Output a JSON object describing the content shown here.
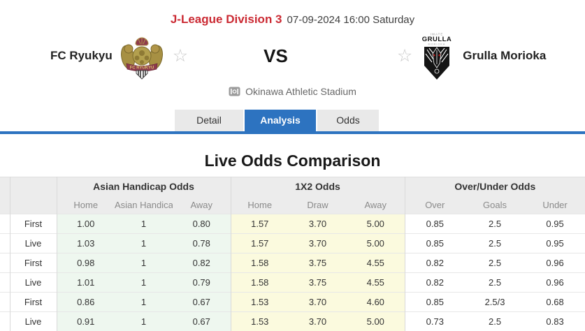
{
  "header": {
    "league": "J-League Division 3",
    "datetime": "07-09-2024 16:00 Saturday"
  },
  "match": {
    "home_team": "FC Ryukyu",
    "away_team": "Grulla Morioka",
    "vs_label": "VS",
    "venue": "Okinawa Athletic Stadium",
    "home_logo_icon": "fc-ryukyu-crest-icon",
    "away_logo_icon": "grulla-morioka-crest-icon",
    "favorite_icon": "star-outline-icon",
    "venue_icon": "stadium-icon",
    "away_logo_text_top": "IWATE",
    "away_logo_text_main": "GRULLA",
    "away_logo_text_sub": "MORIOKA"
  },
  "tabs": [
    {
      "label": "Detail",
      "active": false
    },
    {
      "label": "Analysis",
      "active": true
    },
    {
      "label": "Odds",
      "active": false
    }
  ],
  "section_title": "Live Odds Comparison",
  "odds_table": {
    "group_headers": [
      "Asian Handicap Odds",
      "1X2 Odds",
      "Over/Under Odds"
    ],
    "sub_headers": {
      "ah": [
        "Home",
        "Asian Handicap",
        "Away"
      ],
      "x12": [
        "Home",
        "Draw",
        "Away"
      ],
      "ou": [
        "Over",
        "Goals",
        "Under"
      ]
    },
    "rows": [
      {
        "label": "First",
        "ah": [
          "1.00",
          "1",
          "0.80"
        ],
        "x12": [
          "1.57",
          "3.70",
          "5.00"
        ],
        "ou": [
          "0.85",
          "2.5",
          "0.95"
        ]
      },
      {
        "label": "Live",
        "ah": [
          "1.03",
          "1",
          "0.78"
        ],
        "x12": [
          "1.57",
          "3.70",
          "5.00"
        ],
        "ou": [
          "0.85",
          "2.5",
          "0.95"
        ]
      },
      {
        "label": "First",
        "ah": [
          "0.98",
          "1",
          "0.82"
        ],
        "x12": [
          "1.58",
          "3.75",
          "4.55"
        ],
        "ou": [
          "0.82",
          "2.5",
          "0.96"
        ]
      },
      {
        "label": "Live",
        "ah": [
          "1.01",
          "1",
          "0.79"
        ],
        "x12": [
          "1.58",
          "3.75",
          "4.55"
        ],
        "ou": [
          "0.82",
          "2.5",
          "0.96"
        ]
      },
      {
        "label": "First",
        "ah": [
          "0.86",
          "1",
          "0.67"
        ],
        "x12": [
          "1.53",
          "3.70",
          "4.60"
        ],
        "ou": [
          "0.85",
          "2.5/3",
          "0.68"
        ]
      },
      {
        "label": "Live",
        "ah": [
          "0.91",
          "1",
          "0.67"
        ],
        "x12": [
          "1.53",
          "3.70",
          "5.00"
        ],
        "ou": [
          "0.73",
          "2.5",
          "0.83"
        ]
      }
    ]
  },
  "colors": {
    "accent_red": "#cb2a33",
    "tab_blue": "#2d73c0",
    "asian_handicap_bg": "#eef7ef",
    "x12_bg": "#fbfade",
    "table_header_bg": "#ececec"
  }
}
